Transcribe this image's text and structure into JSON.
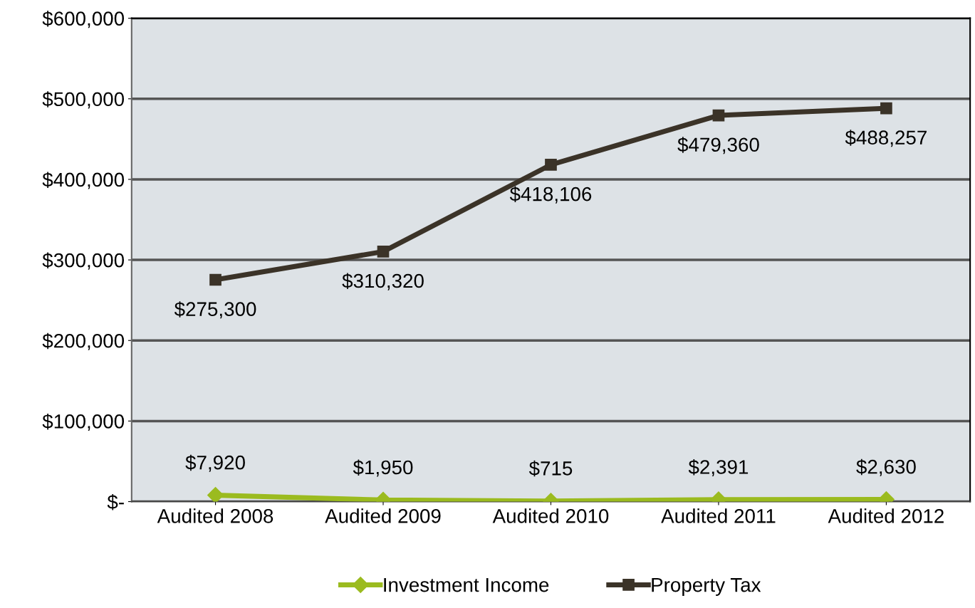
{
  "chart_data": {
    "type": "line",
    "categories": [
      "Audited 2008",
      "Audited 2009",
      "Audited 2010",
      "Audited 2011",
      "Audited 2012"
    ],
    "series": [
      {
        "name": "Investment Income",
        "color": "#9bbb1f",
        "marker": "diamond",
        "values": [
          7920,
          1950,
          715,
          2391,
          2630
        ],
        "value_labels": [
          "$7,920",
          "$1,950",
          "$715",
          "$2,391",
          "$2,630"
        ]
      },
      {
        "name": "Property Tax",
        "color": "#3b3328",
        "marker": "square",
        "values": [
          275300,
          310320,
          418106,
          479360,
          488257
        ],
        "value_labels": [
          "$275,300",
          "$310,320",
          "$418,106",
          "$479,360",
          "$488,257"
        ]
      }
    ],
    "ylim": [
      0,
      600000
    ],
    "yticks": [
      {
        "value": 0,
        "label": "$-"
      },
      {
        "value": 100000,
        "label": "$100,000"
      },
      {
        "value": 200000,
        "label": "$200,000"
      },
      {
        "value": 300000,
        "label": "$300,000"
      },
      {
        "value": 400000,
        "label": "$400,000"
      },
      {
        "value": 500000,
        "label": "$500,000"
      },
      {
        "value": 600000,
        "label": "$600,000"
      }
    ],
    "grid": "y",
    "legend": "bottom",
    "line_style": "solid"
  }
}
